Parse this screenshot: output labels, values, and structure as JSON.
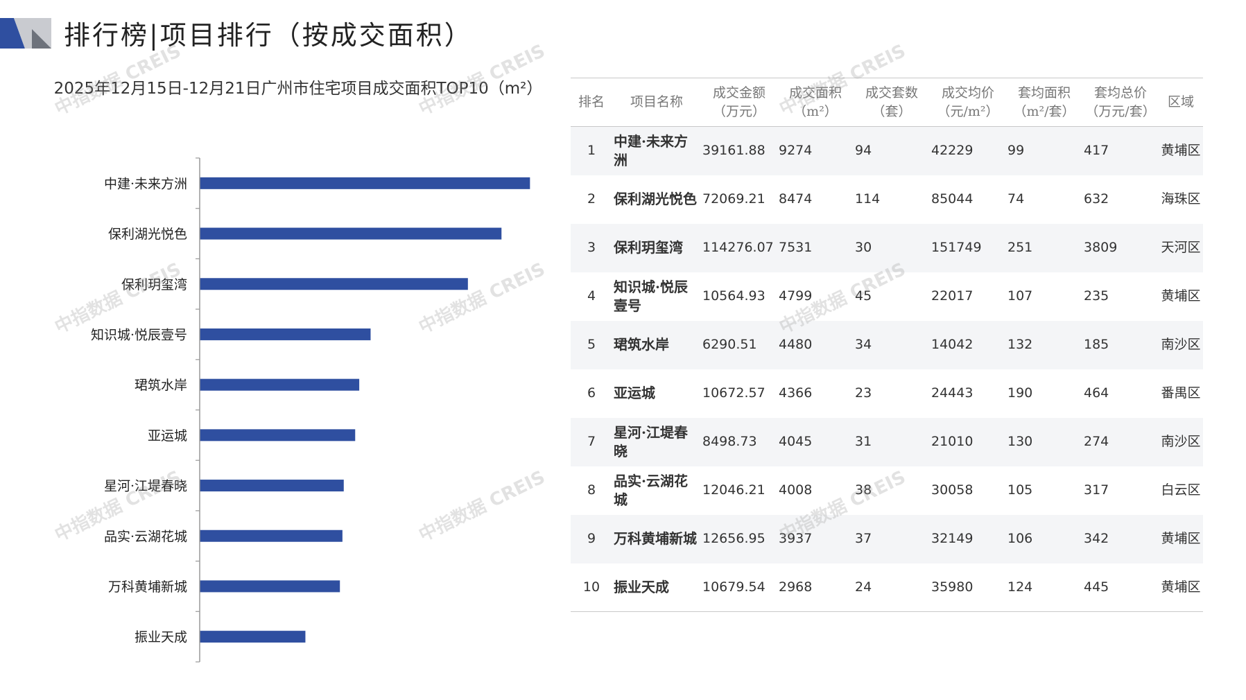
{
  "page": {
    "title": "排行榜|项目排行（按成交面积）"
  },
  "chart_data": {
    "type": "bar",
    "orientation": "horizontal",
    "title": "2025年12月15日-12月21日广州市住宅项目成交面积TOP10（m²）",
    "categories": [
      "中建·未来方洲",
      "保利湖光悦色",
      "保利玥玺湾",
      "知识城·悦辰壹号",
      "珺筑水岸",
      "亚运城",
      "星河·江堤春晓",
      "品实·云湖花城",
      "万科黄埔新城",
      "振业天成"
    ],
    "values": [
      9274,
      8474,
      7531,
      4799,
      4480,
      4366,
      4045,
      4008,
      3937,
      2968
    ],
    "xlim": [
      0,
      11000
    ],
    "grid": false,
    "legend": "none",
    "bar_color": "#2f4fa0"
  },
  "table": {
    "headers": [
      {
        "l1": "排名",
        "l2": ""
      },
      {
        "l1": "项目名称",
        "l2": ""
      },
      {
        "l1": "成交金额",
        "l2": "（万元）"
      },
      {
        "l1": "成交面积",
        "l2": "（m²）"
      },
      {
        "l1": "成交套数",
        "l2": "（套）"
      },
      {
        "l1": "成交均价",
        "l2": "（元/m²）"
      },
      {
        "l1": "套均面积",
        "l2": "（m²/套）"
      },
      {
        "l1": "套均总价",
        "l2": "（万元/套）"
      },
      {
        "l1": "区域",
        "l2": ""
      }
    ],
    "rows": [
      {
        "rank": "1",
        "name": "中建·未来方洲",
        "amount": "39161.88",
        "area": "9274",
        "units": "94",
        "price": "42229",
        "avg_area": "99",
        "avg_total": "417",
        "district": "黄埔区"
      },
      {
        "rank": "2",
        "name": "保利湖光悦色",
        "amount": "72069.21",
        "area": "8474",
        "units": "114",
        "price": "85044",
        "avg_area": "74",
        "avg_total": "632",
        "district": "海珠区"
      },
      {
        "rank": "3",
        "name": "保利玥玺湾",
        "amount": "114276.07",
        "area": "7531",
        "units": "30",
        "price": "151749",
        "avg_area": "251",
        "avg_total": "3809",
        "district": "天河区"
      },
      {
        "rank": "4",
        "name": "知识城·悦辰壹号",
        "amount": "10564.93",
        "area": "4799",
        "units": "45",
        "price": "22017",
        "avg_area": "107",
        "avg_total": "235",
        "district": "黄埔区"
      },
      {
        "rank": "5",
        "name": "珺筑水岸",
        "amount": "6290.51",
        "area": "4480",
        "units": "34",
        "price": "14042",
        "avg_area": "132",
        "avg_total": "185",
        "district": "南沙区"
      },
      {
        "rank": "6",
        "name": "亚运城",
        "amount": "10672.57",
        "area": "4366",
        "units": "23",
        "price": "24443",
        "avg_area": "190",
        "avg_total": "464",
        "district": "番禺区"
      },
      {
        "rank": "7",
        "name": "星河·江堤春晓",
        "amount": "8498.73",
        "area": "4045",
        "units": "31",
        "price": "21010",
        "avg_area": "130",
        "avg_total": "274",
        "district": "南沙区"
      },
      {
        "rank": "8",
        "name": "品实·云湖花城",
        "amount": "12046.21",
        "area": "4008",
        "units": "38",
        "price": "30058",
        "avg_area": "105",
        "avg_total": "317",
        "district": "白云区"
      },
      {
        "rank": "9",
        "name": "万科黄埔新城",
        "amount": "12656.95",
        "area": "3937",
        "units": "37",
        "price": "32149",
        "avg_area": "106",
        "avg_total": "342",
        "district": "黄埔区"
      },
      {
        "rank": "10",
        "name": "振业天成",
        "amount": "10679.54",
        "area": "2968",
        "units": "24",
        "price": "35980",
        "avg_area": "124",
        "avg_total": "445",
        "district": "黄埔区"
      }
    ]
  },
  "watermark": {
    "text": "中指数据 CREIS"
  }
}
